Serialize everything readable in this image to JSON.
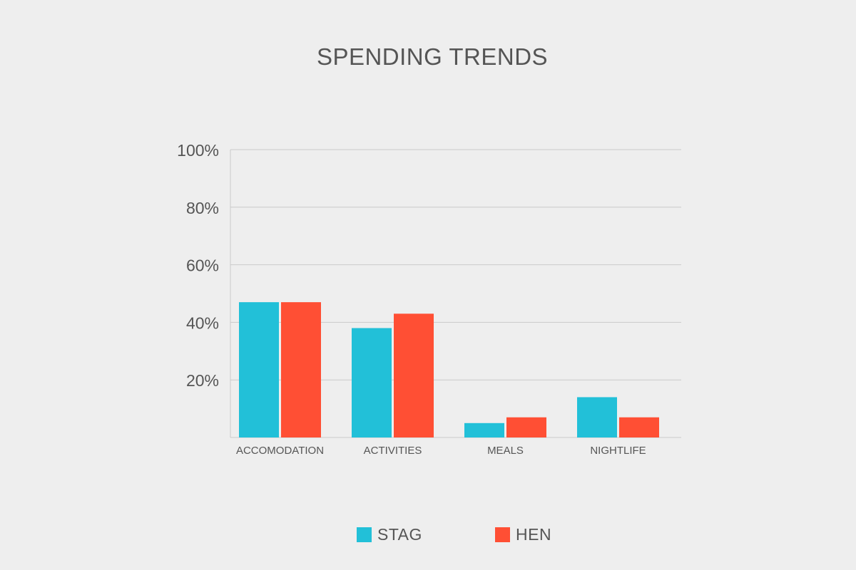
{
  "chart_data": {
    "type": "bar",
    "title": "SPENDING TRENDS",
    "categories": [
      "ACCOMODATION",
      "ACTIVITIES",
      "MEALS",
      "NIGHTLIFE"
    ],
    "series": [
      {
        "name": "STAG",
        "values": [
          47,
          38,
          5,
          14
        ],
        "color": "#22c0d8"
      },
      {
        "name": "HEN",
        "values": [
          47,
          43,
          7,
          7
        ],
        "color": "#ff4f34"
      }
    ],
    "ylim": [
      0,
      100
    ],
    "yticks": [
      20,
      40,
      60,
      80,
      100
    ],
    "ytick_labels": [
      "20%",
      "40%",
      "60%",
      "80%",
      "100%"
    ],
    "grid": true,
    "legend": "bottom-center",
    "xlabel": "",
    "ylabel": ""
  }
}
